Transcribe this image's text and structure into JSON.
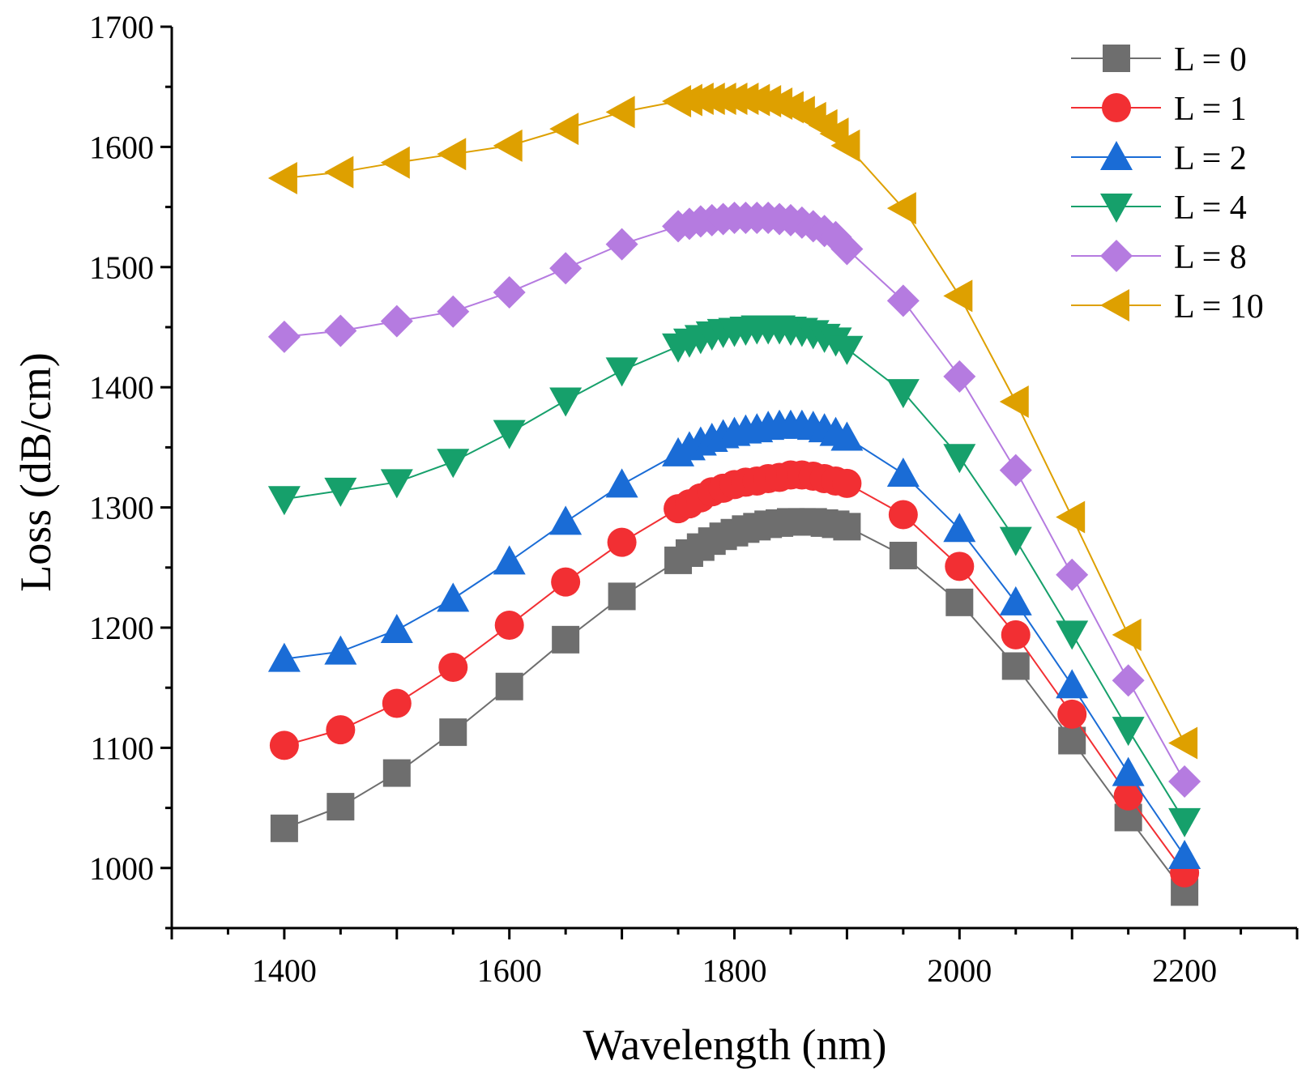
{
  "chart_data": {
    "type": "line",
    "title": "",
    "xlabel": "Wavelength (nm)",
    "ylabel": "Loss (dB/cm)",
    "xlim": [
      1300,
      2300
    ],
    "ylim": [
      950,
      1700
    ],
    "xticks": [
      1400,
      1600,
      1800,
      2000,
      2200
    ],
    "yticks": [
      1000,
      1100,
      1200,
      1300,
      1400,
      1500,
      1600,
      1700
    ],
    "grid": false,
    "legend_position": "top-right",
    "x": [
      1400,
      1450,
      1500,
      1550,
      1600,
      1650,
      1700,
      1750,
      1760,
      1770,
      1780,
      1790,
      1800,
      1810,
      1820,
      1830,
      1840,
      1850,
      1860,
      1870,
      1880,
      1890,
      1900,
      1950,
      2000,
      2050,
      2100,
      2150,
      2200
    ],
    "series": [
      {
        "name": "L = 0",
        "color": "#6e6e6e",
        "marker": "square",
        "values": [
          1033,
          1051,
          1079,
          1113,
          1151,
          1190,
          1226,
          1256,
          1262,
          1267,
          1272,
          1276,
          1279,
          1282,
          1284,
          1286,
          1287,
          1288,
          1288,
          1288,
          1287,
          1286,
          1284,
          1260,
          1221,
          1168,
          1106,
          1042,
          980
        ]
      },
      {
        "name": "L = 1",
        "color": "#f22f33",
        "marker": "circle",
        "values": [
          1102,
          1115,
          1137,
          1167,
          1202,
          1238,
          1271,
          1299,
          1303,
          1308,
          1313,
          1316,
          1319,
          1321,
          1322,
          1324,
          1325,
          1327,
          1327,
          1326,
          1324,
          1322,
          1320,
          1294,
          1251,
          1194,
          1128,
          1060,
          996
        ]
      },
      {
        "name": "L = 2",
        "color": "#1a6cd6",
        "marker": "triangle-up",
        "values": [
          1174,
          1180,
          1198,
          1224,
          1255,
          1288,
          1319,
          1345,
          1350,
          1354,
          1357,
          1360,
          1362,
          1364,
          1365,
          1367,
          1368,
          1368,
          1368,
          1367,
          1365,
          1362,
          1358,
          1328,
          1282,
          1221,
          1152,
          1079,
          1010
        ]
      },
      {
        "name": "L = 4",
        "color": "#16a06b",
        "marker": "triangle-down",
        "values": [
          1307,
          1314,
          1321,
          1338,
          1362,
          1389,
          1414,
          1434,
          1438,
          1441,
          1444,
          1446,
          1447,
          1448,
          1449,
          1449,
          1449,
          1448,
          1447,
          1445,
          1442,
          1439,
          1432,
          1396,
          1342,
          1273,
          1195,
          1115,
          1039
        ]
      },
      {
        "name": "L = 8",
        "color": "#b57be0",
        "marker": "diamond",
        "values": [
          1442,
          1447,
          1455,
          1463,
          1479,
          1499,
          1519,
          1534,
          1536,
          1538,
          1539,
          1540,
          1541,
          1541,
          1541,
          1541,
          1540,
          1539,
          1537,
          1534,
          1530,
          1525,
          1515,
          1472,
          1409,
          1331,
          1244,
          1156,
          1072
        ]
      },
      {
        "name": "L = 10",
        "color": "#dea000",
        "marker": "triangle-left",
        "values": [
          1574,
          1579,
          1587,
          1594,
          1601,
          1615,
          1629,
          1638,
          1639,
          1640,
          1640,
          1640,
          1640,
          1640,
          1639,
          1638,
          1636,
          1633,
          1629,
          1624,
          1618,
          1611,
          1601,
          1549,
          1476,
          1388,
          1292,
          1194,
          1104
        ]
      }
    ]
  }
}
